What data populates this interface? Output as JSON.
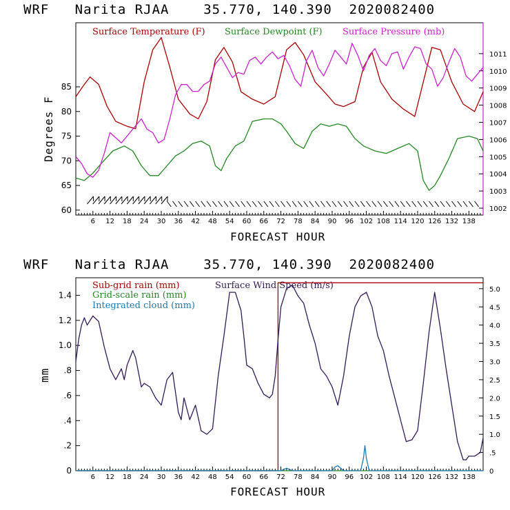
{
  "chart_data": [
    {
      "type": "line",
      "title": "WRF   Narita RJAA    35.770, 140.390  2020082400",
      "xlabel": "FORECAST HOUR",
      "ylabel": "Degrees F",
      "xlim": [
        0,
        143
      ],
      "ylim": [
        59,
        98
      ],
      "y2lim": [
        1001.6,
        1012.8
      ],
      "x_ticks": [
        6,
        12,
        18,
        24,
        30,
        36,
        42,
        48,
        54,
        60,
        66,
        72,
        78,
        84,
        90,
        96,
        102,
        108,
        114,
        120,
        126,
        132,
        138
      ],
      "y_ticks": [
        60,
        65,
        70,
        75,
        80,
        85
      ],
      "y2_ticks": [
        "1002",
        "1003",
        "1004",
        "1005",
        "1006",
        "1007",
        "1008",
        "1009",
        "1010",
        "1011"
      ],
      "colors": {
        "temperature": "#aa0000",
        "dewpoint": "#228822",
        "pressure": "#cc22cc",
        "wind": "#000000"
      },
      "series": [
        {
          "name": "Surface Temperature (F)",
          "axis": "left",
          "x": [
            0,
            3,
            5,
            8,
            11,
            14,
            18,
            21,
            24,
            27,
            30,
            33,
            36,
            40,
            43,
            46,
            49,
            52,
            55,
            58,
            62,
            66,
            70,
            74,
            77,
            80,
            84,
            88,
            91,
            94,
            98,
            101,
            104,
            107,
            111,
            115,
            119,
            122,
            125,
            128,
            132,
            136,
            140,
            143
          ],
          "y": [
            83,
            85.5,
            87,
            85.5,
            81,
            78,
            77,
            76.5,
            86,
            92.5,
            95,
            89,
            82.5,
            79.5,
            78.5,
            82,
            90.5,
            93,
            90,
            84,
            82.5,
            81.5,
            83,
            92.5,
            94,
            91.5,
            86,
            83.5,
            81.5,
            81,
            82,
            89,
            92,
            86,
            82.5,
            80.5,
            79,
            86,
            93,
            92.5,
            86,
            81.5,
            80,
            84
          ]
        },
        {
          "name": "Surface Dewpoint (F)",
          "axis": "left",
          "x": [
            0,
            3,
            6,
            9,
            13,
            17,
            20,
            23,
            26,
            29,
            32,
            35,
            38,
            41,
            44,
            47,
            49,
            51,
            53,
            56,
            59,
            62,
            66,
            69,
            72,
            74,
            77,
            80,
            83,
            86,
            89,
            92,
            95,
            98,
            101,
            105,
            109,
            113,
            117,
            120,
            122,
            124,
            126,
            128,
            131,
            134,
            138,
            141,
            143
          ],
          "y": [
            66.5,
            66,
            67.5,
            69.5,
            72,
            73,
            72,
            69,
            67,
            67,
            69,
            71,
            72,
            73.5,
            74,
            73,
            69,
            68,
            70.5,
            73,
            74,
            78,
            78.5,
            78.5,
            77.5,
            76,
            73.5,
            72.5,
            76,
            77.5,
            77,
            77.5,
            77,
            74.5,
            73,
            72,
            71.5,
            72.5,
            73.5,
            72,
            66,
            64,
            65,
            67,
            70.5,
            74.5,
            75,
            74.5,
            72
          ]
        },
        {
          "name": "Surface Pressure (mb)",
          "axis": "right",
          "x": [
            0,
            2,
            4,
            6,
            8,
            10,
            12,
            14,
            16,
            18,
            20,
            23,
            25,
            27,
            29,
            31,
            33,
            35,
            37,
            39,
            41,
            43,
            45,
            47,
            49,
            51,
            53,
            55,
            57,
            59,
            61,
            63,
            65,
            67,
            69,
            71,
            73,
            75,
            77,
            79,
            81,
            83,
            85,
            87,
            89,
            91,
            93,
            95,
            97,
            99,
            101,
            103,
            105,
            107,
            109,
            111,
            113,
            115,
            117,
            119,
            121,
            123,
            125,
            127,
            129,
            131,
            133,
            135,
            137,
            139,
            141,
            143
          ],
          "y": [
            1005,
            1004.6,
            1004,
            1003.8,
            1004.2,
            1005.2,
            1006.4,
            1006.1,
            1005.8,
            1006.2,
            1006.6,
            1007.2,
            1006.6,
            1006.4,
            1005.8,
            1006,
            1007.2,
            1008.6,
            1009.2,
            1009.2,
            1008.8,
            1008.8,
            1009.2,
            1009.4,
            1010.4,
            1010.8,
            1010.2,
            1009.6,
            1009.9,
            1009.8,
            1010.6,
            1010.8,
            1010.4,
            1010.8,
            1011.1,
            1010.7,
            1010.9,
            1010.3,
            1009.5,
            1009.1,
            1010.6,
            1011.2,
            1010.2,
            1009.7,
            1010.4,
            1011.2,
            1010.8,
            1010.4,
            1011.6,
            1010.9,
            1010,
            1010.9,
            1011.3,
            1010.6,
            1010.3,
            1011,
            1011.1,
            1010.1,
            1010.8,
            1011.4,
            1011.3,
            1010.4,
            1010.1,
            1009.1,
            1009.6,
            1010.5,
            1011.3,
            1010.8,
            1009.7,
            1009.4,
            1009.8,
            1010.2
          ]
        }
      ],
      "wind_barbs": {
        "x_start": 4,
        "x_end": 141,
        "step": 2,
        "shift_hour": 32
      },
      "legend_placement": "top",
      "grid": false
    },
    {
      "type": "line",
      "title": "WRF   Narita RJAA    35.770, 140.390  2020082400",
      "xlabel": "FORECAST HOUR",
      "ylabel": "mm",
      "xlim": [
        0,
        143
      ],
      "ylim": [
        0,
        1.54
      ],
      "y2lim": [
        0,
        5.3
      ],
      "x_ticks": [
        6,
        12,
        18,
        24,
        30,
        36,
        42,
        48,
        54,
        60,
        66,
        72,
        78,
        84,
        90,
        96,
        102,
        108,
        114,
        120,
        126,
        132,
        138
      ],
      "y_ticks": [
        "0",
        ".2",
        ".4",
        ".6",
        ".8",
        "1.0",
        "1.2",
        "1.4"
      ],
      "y2_ticks": [
        "0",
        ".5",
        "1.0",
        "1.5",
        "2.0",
        "2.5",
        "3.0",
        "3.5",
        "4.0",
        "4.5",
        "5.0"
      ],
      "colors": {
        "subgrid": "#aa0000",
        "gridscale": "#228822",
        "cloud": "#1a7ab5",
        "wind": "#331a5a"
      },
      "series": [
        {
          "name": "Sub-grid rain (mm)",
          "axis": "left",
          "x": [
            0,
            70,
            70,
            71,
            71,
            143
          ],
          "y": [
            0,
            0,
            0,
            0,
            1.5,
            1.5
          ]
        },
        {
          "name": "Grid-scale rain (mm)",
          "axis": "left",
          "x": [
            0,
            143
          ],
          "y": [
            0,
            0
          ]
        },
        {
          "name": "Integrated cloud (mm)",
          "axis": "left",
          "x": [
            0,
            72,
            73,
            74,
            75,
            76,
            90,
            91,
            92,
            93,
            94,
            100,
            101,
            101.5,
            102,
            103,
            143
          ],
          "y": [
            0,
            0,
            0.01,
            0.02,
            0.01,
            0,
            0,
            0.03,
            0.04,
            0.02,
            0,
            0,
            0.1,
            0.2,
            0.1,
            0,
            0
          ]
        },
        {
          "name": "Surface Wind Speed (m/s)",
          "axis": "right",
          "x": [
            0,
            1,
            2,
            3,
            4,
            6,
            8,
            10,
            12,
            14,
            16,
            17,
            18,
            20,
            21,
            23,
            24,
            26,
            28,
            30,
            32,
            34,
            36,
            37,
            38,
            40,
            42,
            44,
            46,
            48,
            50,
            52,
            54,
            56,
            58,
            59,
            60,
            62,
            64,
            66,
            68,
            69,
            70,
            71,
            72,
            74,
            76,
            78,
            80,
            82,
            84,
            86,
            88,
            90,
            92,
            94,
            96,
            98,
            100,
            102,
            104,
            106,
            108,
            110,
            112,
            114,
            116,
            118,
            120,
            122,
            124,
            126,
            128,
            130,
            132,
            134,
            136,
            137,
            138,
            140,
            142,
            143
          ],
          "y": [
            3.0,
            3.6,
            4.0,
            4.2,
            4.0,
            4.25,
            4.1,
            3.4,
            2.8,
            2.5,
            2.8,
            2.5,
            2.9,
            3.3,
            3.1,
            2.3,
            2.4,
            2.3,
            2.0,
            1.8,
            2.5,
            2.7,
            1.6,
            1.4,
            2.0,
            1.4,
            1.8,
            1.1,
            1.0,
            1.15,
            2.6,
            3.7,
            4.9,
            4.9,
            4.4,
            3.7,
            2.9,
            2.8,
            2.4,
            2.1,
            2.0,
            2.1,
            2.6,
            3.6,
            4.5,
            5.0,
            5.1,
            4.8,
            4.6,
            4.0,
            3.5,
            2.8,
            2.6,
            2.3,
            1.8,
            2.6,
            3.7,
            4.5,
            4.8,
            4.9,
            4.5,
            3.7,
            3.3,
            2.6,
            2.0,
            1.4,
            0.8,
            0.85,
            1.1,
            2.4,
            3.8,
            4.9,
            3.9,
            2.8,
            1.8,
            0.8,
            0.3,
            0.3,
            0.4,
            0.4,
            0.5,
            0.9
          ]
        }
      ],
      "legend_placement": "top-left",
      "grid": false
    }
  ]
}
